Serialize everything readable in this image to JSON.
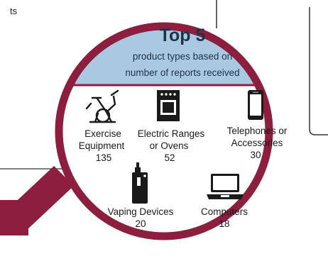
{
  "corner_text": "ts",
  "header": {
    "title": "Top 5",
    "subtitle_line1": "product types based on",
    "subtitle_line2": "number of reports received"
  },
  "items": [
    {
      "line1": "Exercise",
      "line2": "Equipment",
      "count": "135",
      "icon": "exercise-bike-icon"
    },
    {
      "line1": "Electric Ranges",
      "line2": "or Ovens",
      "count": "52",
      "icon": "oven-icon"
    },
    {
      "line1": "Telephones or",
      "line2": "Accessories",
      "count": "30",
      "icon": "phone-icon"
    },
    {
      "line1": "Vaping Devices",
      "count": "20",
      "icon": "vape-device-icon"
    },
    {
      "line1": "Computers",
      "count": "18",
      "icon": "laptop-icon"
    }
  ],
  "colors": {
    "ring": "#8c1f3e",
    "header_fill": "#a9c9e3",
    "header_text": "#1f3347",
    "panel_border": "#333333"
  }
}
